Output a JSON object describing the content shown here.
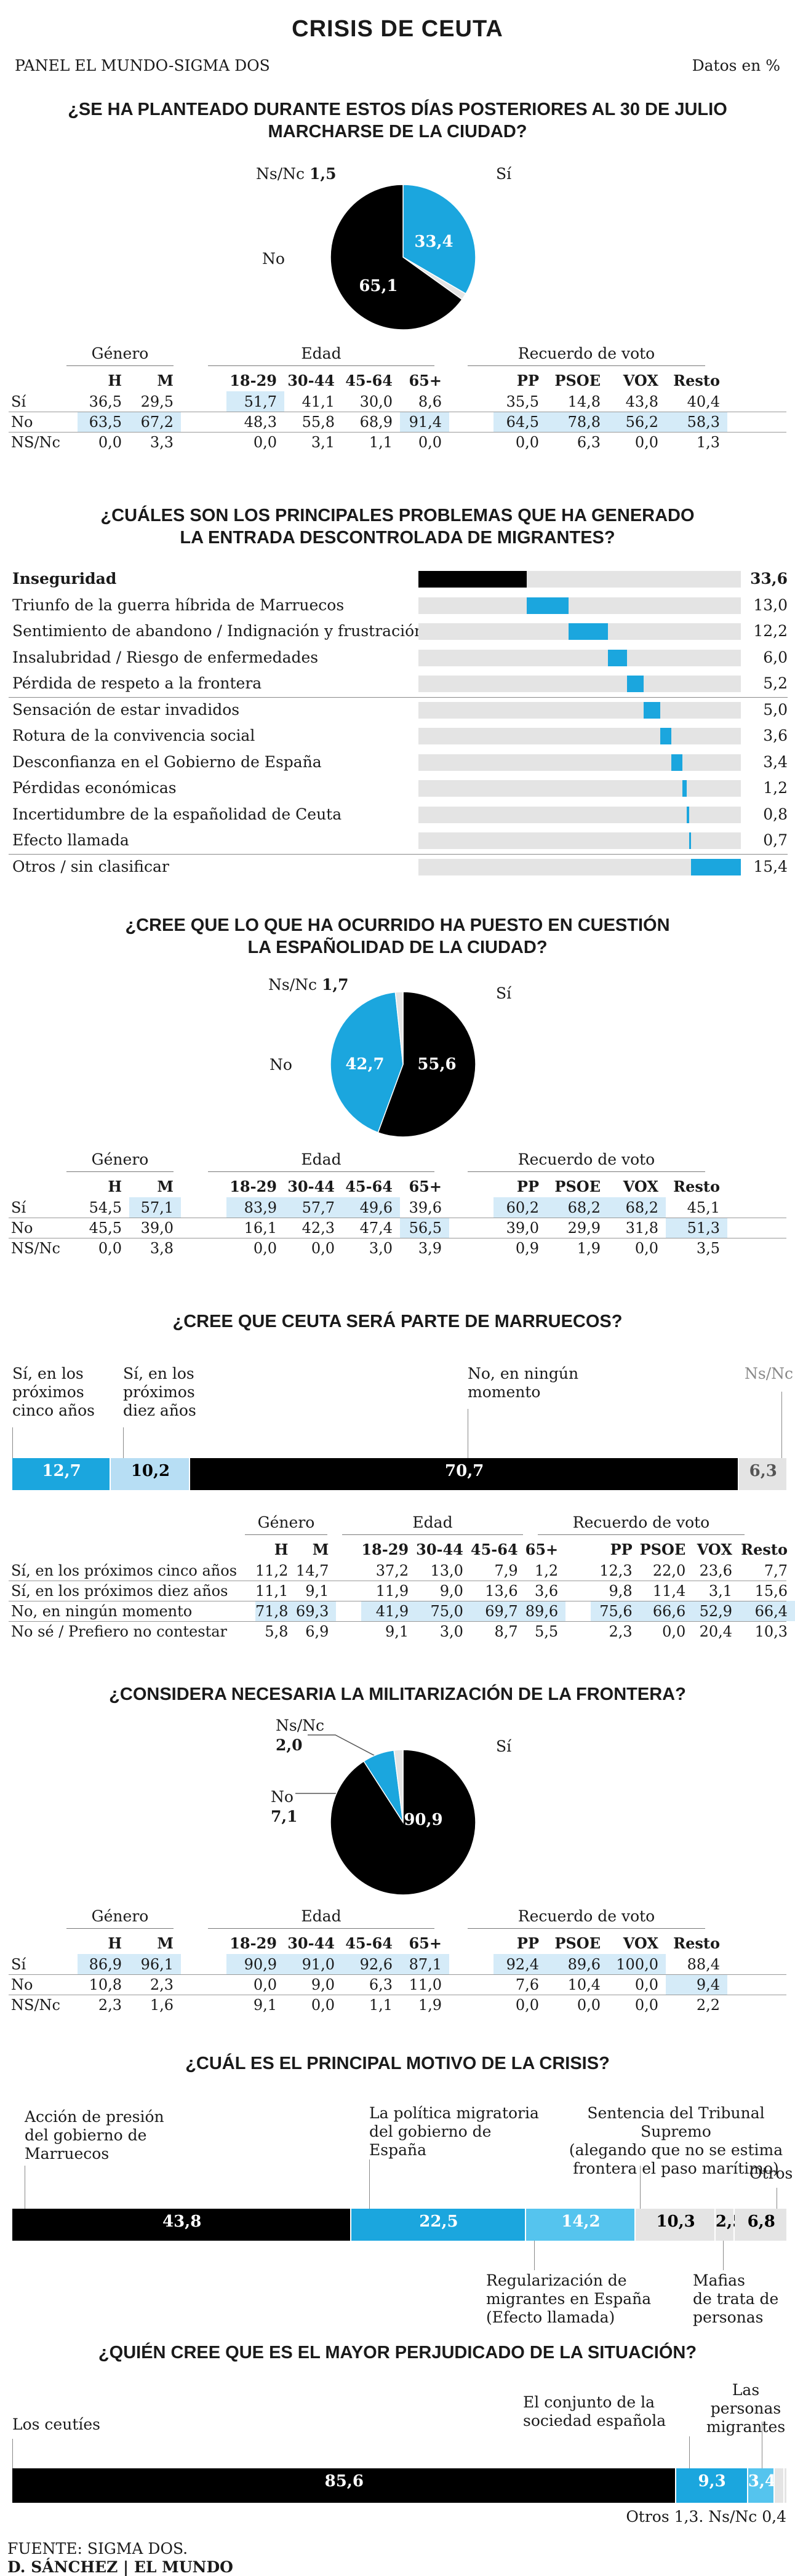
{
  "header": {
    "title": "CRISIS DE CEUTA",
    "source_panel": "PANEL EL MUNDO-SIGMA DOS",
    "units": "Datos en %"
  },
  "groups": {
    "genero": "Género",
    "edad": "Edad",
    "voto": "Recuerdo de voto"
  },
  "colors": {
    "black": "#000000",
    "blue": "#1ba6de",
    "light_blue": "#b7def4",
    "grey": "#e4e4e4",
    "highlight": "#d5ebf8"
  },
  "q1": {
    "question_l1": "¿SE HA PLANTEADO DURANTE ESTOS DÍAS POSTERIORES AL 30 DE JULIO",
    "question_l2": "MARCHARSE DE LA CIUDAD?",
    "nsnc_label": "Ns/Nc",
    "nsnc_value": "1,5",
    "si_label": "Sí",
    "no_label": "No",
    "chart_data": {
      "type": "pie",
      "slices": [
        {
          "label": "Sí",
          "value": 33.4,
          "text": "33,4",
          "color": "#1ba6de"
        },
        {
          "label": "Ns/Nc",
          "value": 1.5,
          "text": "1,5",
          "color": "#e4e4e4"
        },
        {
          "label": "No",
          "value": 65.1,
          "text": "65,1",
          "color": "#000000"
        }
      ]
    },
    "table": {
      "cols": [
        "H",
        "M",
        "18-29",
        "30-44",
        "45-64",
        "65+",
        "PP",
        "PSOE",
        "VOX",
        "Resto"
      ],
      "rows": [
        {
          "label": "Sí",
          "values": [
            "36,5",
            "29,5",
            "51,7",
            "41,1",
            "30,0",
            "8,6",
            "35,5",
            "14,8",
            "43,8",
            "40,4"
          ],
          "hl": [
            2
          ]
        },
        {
          "label": "No",
          "values": [
            "63,5",
            "67,2",
            "48,3",
            "55,8",
            "68,9",
            "91,4",
            "64,5",
            "78,8",
            "56,2",
            "58,3"
          ],
          "hl": [
            0,
            1,
            5,
            6,
            7,
            8,
            9
          ]
        },
        {
          "label": "NS/Nc",
          "values": [
            "0,0",
            "3,3",
            "0,0",
            "3,1",
            "1,1",
            "0,0",
            "0,0",
            "6,3",
            "0,0",
            "1,3"
          ],
          "hl": []
        }
      ]
    }
  },
  "q2": {
    "question_l1": "¿CUÁLES SON LOS PRINCIPALES PROBLEMAS QUE HA GENERADO",
    "question_l2": "LA ENTRADA DESCONTROLADA DE MIGRANTES?",
    "chart_data": {
      "type": "bar",
      "orientation": "horizontal",
      "stacked_offsets": true,
      "categories": [
        "Inseguridad",
        "Triunfo de la guerra híbrida de Marruecos",
        "Sentimiento de abandono / Indignación y frustración",
        "Insalubridad / Riesgo de enfermedades",
        "Pérdida de respeto a la frontera",
        "Sensación de estar invadidos",
        "Rotura de la convivencia social",
        "Desconfianza en el Gobierno de España",
        "Pérdidas económicas",
        "Incertidumbre de la españolidad de Ceuta",
        "Efecto llamada",
        "Otros / sin clasificar"
      ],
      "values": [
        33.6,
        13.0,
        12.2,
        6.0,
        5.2,
        5.0,
        3.6,
        3.4,
        1.2,
        0.8,
        0.7,
        15.4
      ],
      "labels": [
        "33,6",
        "13,0",
        "12,2",
        "6,0",
        "5,2",
        "5,0",
        "3,6",
        "3,4",
        "1,2",
        "0,8",
        "0,7",
        "15,4"
      ]
    }
  },
  "q3": {
    "question_l1": "¿CREE QUE LO QUE HA OCURRIDO HA PUESTO EN CUESTIÓN",
    "question_l2": "LA ESPAÑOLIDAD DE LA CIUDAD?",
    "nsnc_label": "Ns/Nc",
    "nsnc_value": "1,7",
    "si_label": "Sí",
    "no_label": "No",
    "chart_data": {
      "type": "pie",
      "slices": [
        {
          "label": "Sí",
          "value": 55.6,
          "text": "55,6",
          "color": "#000000"
        },
        {
          "label": "No",
          "value": 42.7,
          "text": "42,7",
          "color": "#1ba6de"
        },
        {
          "label": "Ns/Nc",
          "value": 1.7,
          "text": "1,7",
          "color": "#e4e4e4"
        }
      ]
    },
    "table": {
      "cols": [
        "H",
        "M",
        "18-29",
        "30-44",
        "45-64",
        "65+",
        "PP",
        "PSOE",
        "VOX",
        "Resto"
      ],
      "rows": [
        {
          "label": "Sí",
          "values": [
            "54,5",
            "57,1",
            "83,9",
            "57,7",
            "49,6",
            "39,6",
            "60,2",
            "68,2",
            "68,2",
            "45,1"
          ],
          "hl": [
            1,
            2,
            3,
            4,
            6,
            7,
            8
          ]
        },
        {
          "label": "No",
          "values": [
            "45,5",
            "39,0",
            "16,1",
            "42,3",
            "47,4",
            "56,5",
            "39,0",
            "29,9",
            "31,8",
            "51,3"
          ],
          "hl": [
            5,
            9
          ]
        },
        {
          "label": "NS/Nc",
          "values": [
            "0,0",
            "3,8",
            "0,0",
            "0,0",
            "3,0",
            "3,9",
            "0,9",
            "1,9",
            "0,0",
            "3,5"
          ],
          "hl": []
        }
      ]
    }
  },
  "q4": {
    "question": "¿CREE QUE CEUTA SERÁ PARTE DE MARRUECOS?",
    "seg_labels": [
      [
        "Sí, en los",
        "próximos",
        "cinco años"
      ],
      [
        "Sí, en los",
        "próximos",
        "diez años"
      ],
      [
        "No, en ningún",
        "momento"
      ],
      [
        "Ns/Nc"
      ]
    ],
    "chart_data": {
      "type": "bar",
      "orientation": "horizontal",
      "stacked": true,
      "segments": [
        {
          "value": 12.7,
          "text": "12,7",
          "color": "#1ba6de"
        },
        {
          "value": 10.2,
          "text": "10,2",
          "color": "#b7def4"
        },
        {
          "value": 70.7,
          "text": "70,7",
          "color": "#000000"
        },
        {
          "value": 6.3,
          "text": "6,3",
          "color": "#e4e4e4"
        }
      ]
    },
    "table": {
      "cols": [
        "H",
        "M",
        "18-29",
        "30-44",
        "45-64",
        "65+",
        "PP",
        "PSOE",
        "VOX",
        "Resto"
      ],
      "rows": [
        {
          "label": "Sí, en los próximos cinco años",
          "values": [
            "11,2",
            "14,7",
            "37,2",
            "13,0",
            "7,9",
            "1,2",
            "12,3",
            "22,0",
            "23,6",
            "7,7"
          ],
          "hl": []
        },
        {
          "label": "Sí, en los próximos diez años",
          "values": [
            "11,1",
            "9,1",
            "11,9",
            "9,0",
            "13,6",
            "3,6",
            "9,8",
            "11,4",
            "3,1",
            "15,6"
          ],
          "hl": []
        },
        {
          "label": "No, en ningún momento",
          "values": [
            "71,8",
            "69,3",
            "41,9",
            "75,0",
            "69,7",
            "89,6",
            "75,6",
            "66,6",
            "52,9",
            "66,4"
          ],
          "hl": [
            0,
            1,
            2,
            3,
            4,
            5,
            6,
            7,
            8,
            9
          ]
        },
        {
          "label": "No sé / Prefiero no contestar",
          "values": [
            "5,8",
            "6,9",
            "9,1",
            "3,0",
            "8,7",
            "5,5",
            "2,3",
            "0,0",
            "20,4",
            "10,3"
          ],
          "hl": []
        }
      ]
    }
  },
  "q5": {
    "question": "¿CONSIDERA NECESARIA LA MILITARIZACIÓN DE LA FRONTERA?",
    "nsnc_label": "Ns/Nc",
    "nsnc_value": "2,0",
    "no_label": "No",
    "no_value": "7,1",
    "si_label": "Sí",
    "chart_data": {
      "type": "pie",
      "slices": [
        {
          "label": "Sí",
          "value": 90.9,
          "text": "90,9",
          "color": "#000000"
        },
        {
          "label": "No",
          "value": 7.1,
          "text": "7,1",
          "color": "#1ba6de"
        },
        {
          "label": "Ns/Nc",
          "value": 2.0,
          "text": "2,0",
          "color": "#e4e4e4"
        }
      ]
    },
    "table": {
      "cols": [
        "H",
        "M",
        "18-29",
        "30-44",
        "45-64",
        "65+",
        "PP",
        "PSOE",
        "VOX",
        "Resto"
      ],
      "rows": [
        {
          "label": "Sí",
          "values": [
            "86,9",
            "96,1",
            "90,9",
            "91,0",
            "92,6",
            "87,1",
            "92,4",
            "89,6",
            "100,0",
            "88,4"
          ],
          "hl": [
            0,
            1,
            2,
            3,
            4,
            5,
            6,
            7,
            8
          ]
        },
        {
          "label": "No",
          "values": [
            "10,8",
            "2,3",
            "0,0",
            "9,0",
            "6,3",
            "11,0",
            "7,6",
            "10,4",
            "0,0",
            "9,4"
          ],
          "hl": [
            9
          ]
        },
        {
          "label": "NS/Nc",
          "values": [
            "2,3",
            "1,6",
            "9,1",
            "0,0",
            "1,1",
            "1,9",
            "0,0",
            "0,0",
            "0,0",
            "2,2"
          ],
          "hl": []
        }
      ]
    }
  },
  "q6": {
    "question": "¿CUÁL ES EL PRINCIPAL MOTIVO DE LA CRISIS?",
    "label_accion": [
      "Acción de presión",
      "del gobierno de",
      "Marruecos"
    ],
    "label_politica": [
      "La política migratoria",
      "del gobierno de",
      "España"
    ],
    "label_sentencia": [
      "Sentencia del Tribunal Supremo",
      "(alegando que no se estima",
      "frontera el paso marítimo)"
    ],
    "label_otros": "Otros",
    "label_regularizacion": [
      "Regularización de",
      "migrantes en España",
      "(Efecto llamada)"
    ],
    "label_mafias": [
      "Mafias",
      "de trata de",
      "personas"
    ],
    "chart_data": {
      "type": "bar",
      "orientation": "horizontal",
      "stacked": true,
      "segments": [
        {
          "value": 43.8,
          "text": "43,8",
          "color": "#000000"
        },
        {
          "value": 22.5,
          "text": "22,5",
          "color": "#1ba6de"
        },
        {
          "value": 14.2,
          "text": "14,2",
          "color": "#55c4ee"
        },
        {
          "value": 10.3,
          "text": "10,3",
          "color": "#e4e4e4"
        },
        {
          "value": 2.5,
          "text": "2,5",
          "color": "#e4e4e4"
        },
        {
          "value": 6.8,
          "text": "6,8",
          "color": "#e4e4e4"
        }
      ]
    }
  },
  "q7": {
    "question": "¿QUIÉN CREE QUE ES EL MAYOR PERJUDICADO DE LA SITUACIÓN?",
    "label_ceuties": "Los ceutíes",
    "label_conjunto": [
      "El conjunto de la",
      "sociedad española"
    ],
    "label_personas": [
      "Las personas",
      "migrantes"
    ],
    "bottom_note": "Otros 1,3. Ns/Nc 0,4",
    "chart_data": {
      "type": "bar",
      "orientation": "horizontal",
      "stacked": true,
      "segments": [
        {
          "value": 85.6,
          "text": "85,6",
          "color": "#000000"
        },
        {
          "value": 9.3,
          "text": "9,3",
          "color": "#1ba6de"
        },
        {
          "value": 3.4,
          "text": "3,4",
          "color": "#55c4ee"
        },
        {
          "value": 1.3,
          "text": "",
          "color": "#e4e4e4"
        },
        {
          "value": 0.4,
          "text": "",
          "color": "#e4e4e4"
        }
      ]
    }
  },
  "footer": {
    "source": "FUENTE: SIGMA DOS.",
    "credit": "D. SÁNCHEZ | EL MUNDO"
  }
}
